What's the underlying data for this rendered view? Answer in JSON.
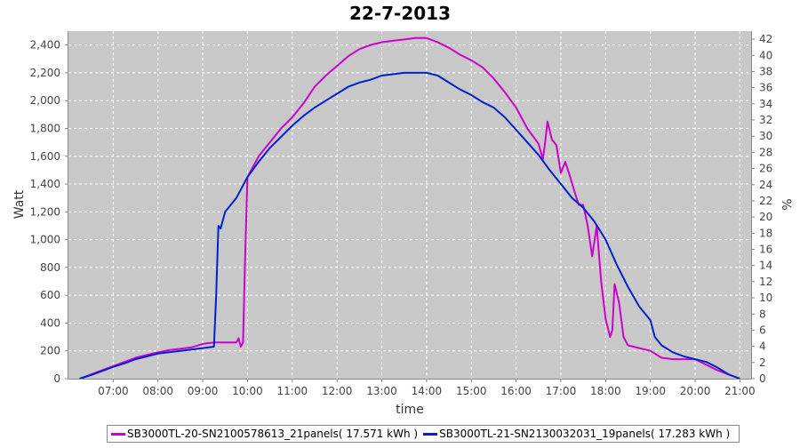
{
  "chart_data": {
    "type": "line",
    "title": "22-7-2013",
    "xlabel": "time",
    "ylabel": "Watt",
    "y2label": "%",
    "xlim": [
      6.0,
      21.25
    ],
    "ylim": [
      0,
      2500
    ],
    "y2lim": [
      0,
      43
    ],
    "x_ticks": [
      "07:00",
      "08:00",
      "09:00",
      "10:00",
      "11:00",
      "12:00",
      "13:00",
      "14:00",
      "15:00",
      "16:00",
      "17:00",
      "18:00",
      "19:00",
      "20:00",
      "21:00"
    ],
    "y_ticks": [
      "0",
      "200",
      "400",
      "600",
      "800",
      "1,000",
      "1,200",
      "1,400",
      "1,600",
      "1,800",
      "2,000",
      "2,200",
      "2,400"
    ],
    "y2_ticks": [
      "0",
      "2",
      "4",
      "6",
      "8",
      "10",
      "12",
      "14",
      "16",
      "18",
      "20",
      "22",
      "24",
      "26",
      "28",
      "30",
      "32",
      "34",
      "36",
      "38",
      "40",
      "42"
    ],
    "grid": true,
    "legend_position": "bottom",
    "colors": {
      "plot_bg": "#c8c8c8",
      "grid": "#ffffff"
    },
    "series": [
      {
        "name": "SB3000TL-20-SN2100578613_21panels( 17.571 kWh )",
        "color": "#cc00cc",
        "x": [
          6.25,
          6.5,
          6.75,
          7.0,
          7.25,
          7.5,
          7.75,
          8.0,
          8.25,
          8.5,
          8.75,
          9.0,
          9.25,
          9.5,
          9.75,
          9.8,
          9.85,
          9.9,
          9.95,
          10.0,
          10.25,
          10.5,
          10.75,
          11.0,
          11.25,
          11.5,
          11.75,
          12.0,
          12.25,
          12.5,
          12.75,
          13.0,
          13.25,
          13.5,
          13.75,
          14.0,
          14.25,
          14.5,
          14.75,
          15.0,
          15.25,
          15.5,
          15.75,
          16.0,
          16.25,
          16.5,
          16.6,
          16.65,
          16.7,
          16.8,
          16.9,
          17.0,
          17.1,
          17.2,
          17.3,
          17.4,
          17.5,
          17.6,
          17.7,
          17.8,
          17.9,
          18.0,
          18.1,
          18.15,
          18.2,
          18.3,
          18.4,
          18.5,
          18.75,
          19.0,
          19.25,
          19.5,
          19.75,
          20.0,
          20.25,
          20.5,
          20.75,
          21.0
        ],
        "y": [
          0,
          30,
          60,
          90,
          120,
          150,
          170,
          190,
          205,
          215,
          225,
          250,
          260,
          260,
          260,
          290,
          230,
          260,
          900,
          1450,
          1600,
          1700,
          1800,
          1880,
          1980,
          2100,
          2180,
          2250,
          2320,
          2370,
          2400,
          2420,
          2430,
          2440,
          2450,
          2450,
          2420,
          2380,
          2330,
          2290,
          2240,
          2160,
          2060,
          1950,
          1800,
          1690,
          1580,
          1700,
          1850,
          1720,
          1680,
          1480,
          1560,
          1460,
          1350,
          1250,
          1250,
          1100,
          880,
          1100,
          700,
          430,
          300,
          350,
          680,
          550,
          300,
          240,
          220,
          200,
          150,
          140,
          140,
          140,
          100,
          60,
          30,
          0
        ]
      },
      {
        "name": "SB3000TL-21-SN2130032031_19panels( 17.283 kWh )",
        "color": "#0022cc",
        "x": [
          6.25,
          6.5,
          6.75,
          7.0,
          7.25,
          7.5,
          7.75,
          8.0,
          8.25,
          8.5,
          8.75,
          9.0,
          9.25,
          9.3,
          9.35,
          9.4,
          9.5,
          9.75,
          10.0,
          10.25,
          10.5,
          10.75,
          11.0,
          11.25,
          11.5,
          11.75,
          12.0,
          12.25,
          12.5,
          12.75,
          13.0,
          13.25,
          13.5,
          13.75,
          14.0,
          14.25,
          14.5,
          14.75,
          15.0,
          15.25,
          15.5,
          15.75,
          16.0,
          16.25,
          16.5,
          16.75,
          17.0,
          17.25,
          17.5,
          17.75,
          18.0,
          18.25,
          18.5,
          18.75,
          19.0,
          19.1,
          19.25,
          19.5,
          19.75,
          20.0,
          20.25,
          20.5,
          20.75,
          21.0
        ],
        "y": [
          0,
          25,
          55,
          85,
          110,
          140,
          160,
          180,
          190,
          200,
          210,
          220,
          230,
          600,
          1100,
          1080,
          1200,
          1300,
          1450,
          1560,
          1660,
          1740,
          1820,
          1890,
          1950,
          2000,
          2050,
          2100,
          2130,
          2150,
          2180,
          2190,
          2200,
          2200,
          2200,
          2180,
          2130,
          2080,
          2040,
          1990,
          1950,
          1880,
          1790,
          1700,
          1610,
          1500,
          1400,
          1300,
          1230,
          1130,
          1000,
          820,
          660,
          520,
          420,
          300,
          240,
          190,
          160,
          140,
          120,
          80,
          30,
          0
        ]
      }
    ]
  }
}
